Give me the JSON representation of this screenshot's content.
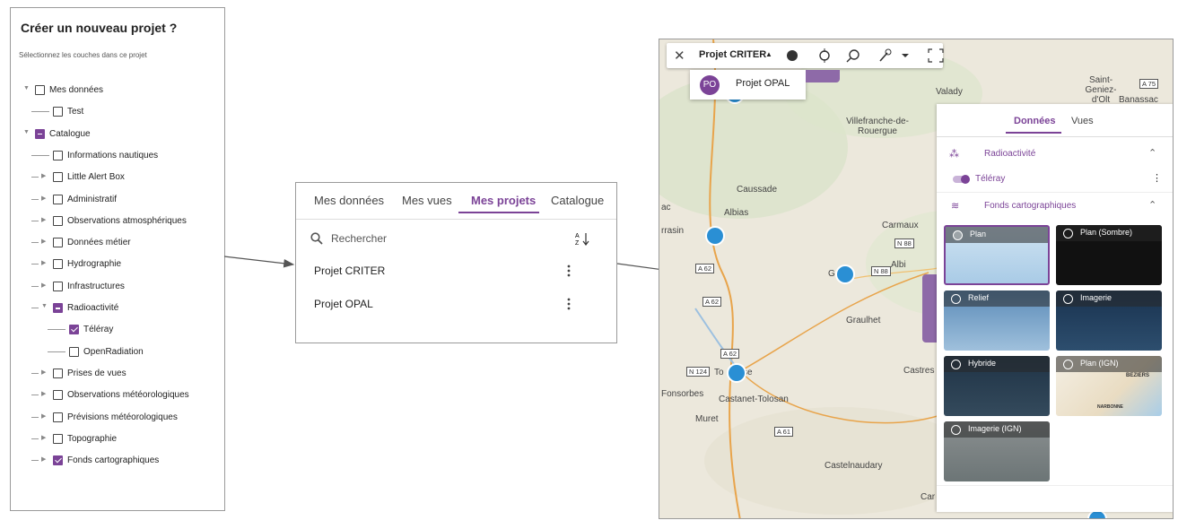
{
  "left_panel": {
    "title": "Créer un nouveau projet ?",
    "subtitle": "Sélectionnez les couches dans ce projet",
    "tree": [
      {
        "label": "Mes données",
        "depth": 0,
        "check": "unchecked",
        "expander": "open"
      },
      {
        "label": "Test",
        "depth": 1,
        "check": "unchecked",
        "expander": null
      },
      {
        "label": "Catalogue",
        "depth": 0,
        "check": "partial",
        "expander": "open"
      },
      {
        "label": "Informations nautiques",
        "depth": 1,
        "check": "unchecked",
        "expander": null
      },
      {
        "label": "Little Alert Box",
        "depth": 1,
        "check": "unchecked",
        "expander": "closed"
      },
      {
        "label": "Administratif",
        "depth": 1,
        "check": "unchecked",
        "expander": "closed"
      },
      {
        "label": "Observations atmosphériques",
        "depth": 1,
        "check": "unchecked",
        "expander": "closed"
      },
      {
        "label": "Données métier",
        "depth": 1,
        "check": "unchecked",
        "expander": "closed"
      },
      {
        "label": "Hydrographie",
        "depth": 1,
        "check": "unchecked",
        "expander": "closed"
      },
      {
        "label": "Infrastructures",
        "depth": 1,
        "check": "unchecked",
        "expander": "closed"
      },
      {
        "label": "Radioactivité",
        "depth": 1,
        "check": "partial",
        "expander": "open"
      },
      {
        "label": "Téléray",
        "depth": 2,
        "check": "checked",
        "expander": null
      },
      {
        "label": "OpenRadiation",
        "depth": 2,
        "check": "unchecked",
        "expander": null
      },
      {
        "label": "Prises de vues",
        "depth": 1,
        "check": "unchecked",
        "expander": "closed"
      },
      {
        "label": "Observations météorologiques",
        "depth": 1,
        "check": "unchecked",
        "expander": "closed"
      },
      {
        "label": "Prévisions météorologiques",
        "depth": 1,
        "check": "unchecked",
        "expander": "closed"
      },
      {
        "label": "Topographie",
        "depth": 1,
        "check": "unchecked",
        "expander": "closed"
      },
      {
        "label": "Fonds cartographiques",
        "depth": 1,
        "check": "checked",
        "expander": "closed"
      }
    ]
  },
  "middle_panel": {
    "tabs": [
      "Mes données",
      "Mes vues",
      "Mes projets",
      "Catalogue"
    ],
    "search_placeholder": "Rechercher",
    "projects": [
      "Projet CRITER",
      "Projet OPAL"
    ]
  },
  "map": {
    "toolbar_title": "Projet CRITER",
    "dropdown": {
      "initials": "PO",
      "label": "Projet OPAL"
    },
    "places": [
      "Valady",
      "Saint-Geniez-d'Olt",
      "Banassac",
      "Villefranche-de-Rouergue",
      "Caussade",
      "Albias",
      "Carmaux",
      "Albi",
      "Graulhet",
      "Castres",
      "To",
      "se",
      "Fonsorbes",
      "Castanet-Tolosan",
      "Muret",
      "Castelnaudary",
      "rrasin",
      "ac",
      "Car",
      "G"
    ],
    "roads": [
      "A 75",
      "N 88",
      "N 88",
      "A 62",
      "A 62",
      "A 62",
      "N 124",
      "A 61"
    ],
    "side_panel": {
      "tabs": [
        "Données",
        "Vues"
      ],
      "section_1": "Radioactivité",
      "layer": "Téléray",
      "section_2": "Fonds cartographiques",
      "basemaps": [
        "Plan",
        "Plan (Sombre)",
        "Relief",
        "Imagerie",
        "Hybride",
        "Plan (IGN)",
        "Imagerie (IGN)"
      ],
      "ign_labels": [
        "BEZIERS",
        "NARBONNE"
      ]
    }
  }
}
